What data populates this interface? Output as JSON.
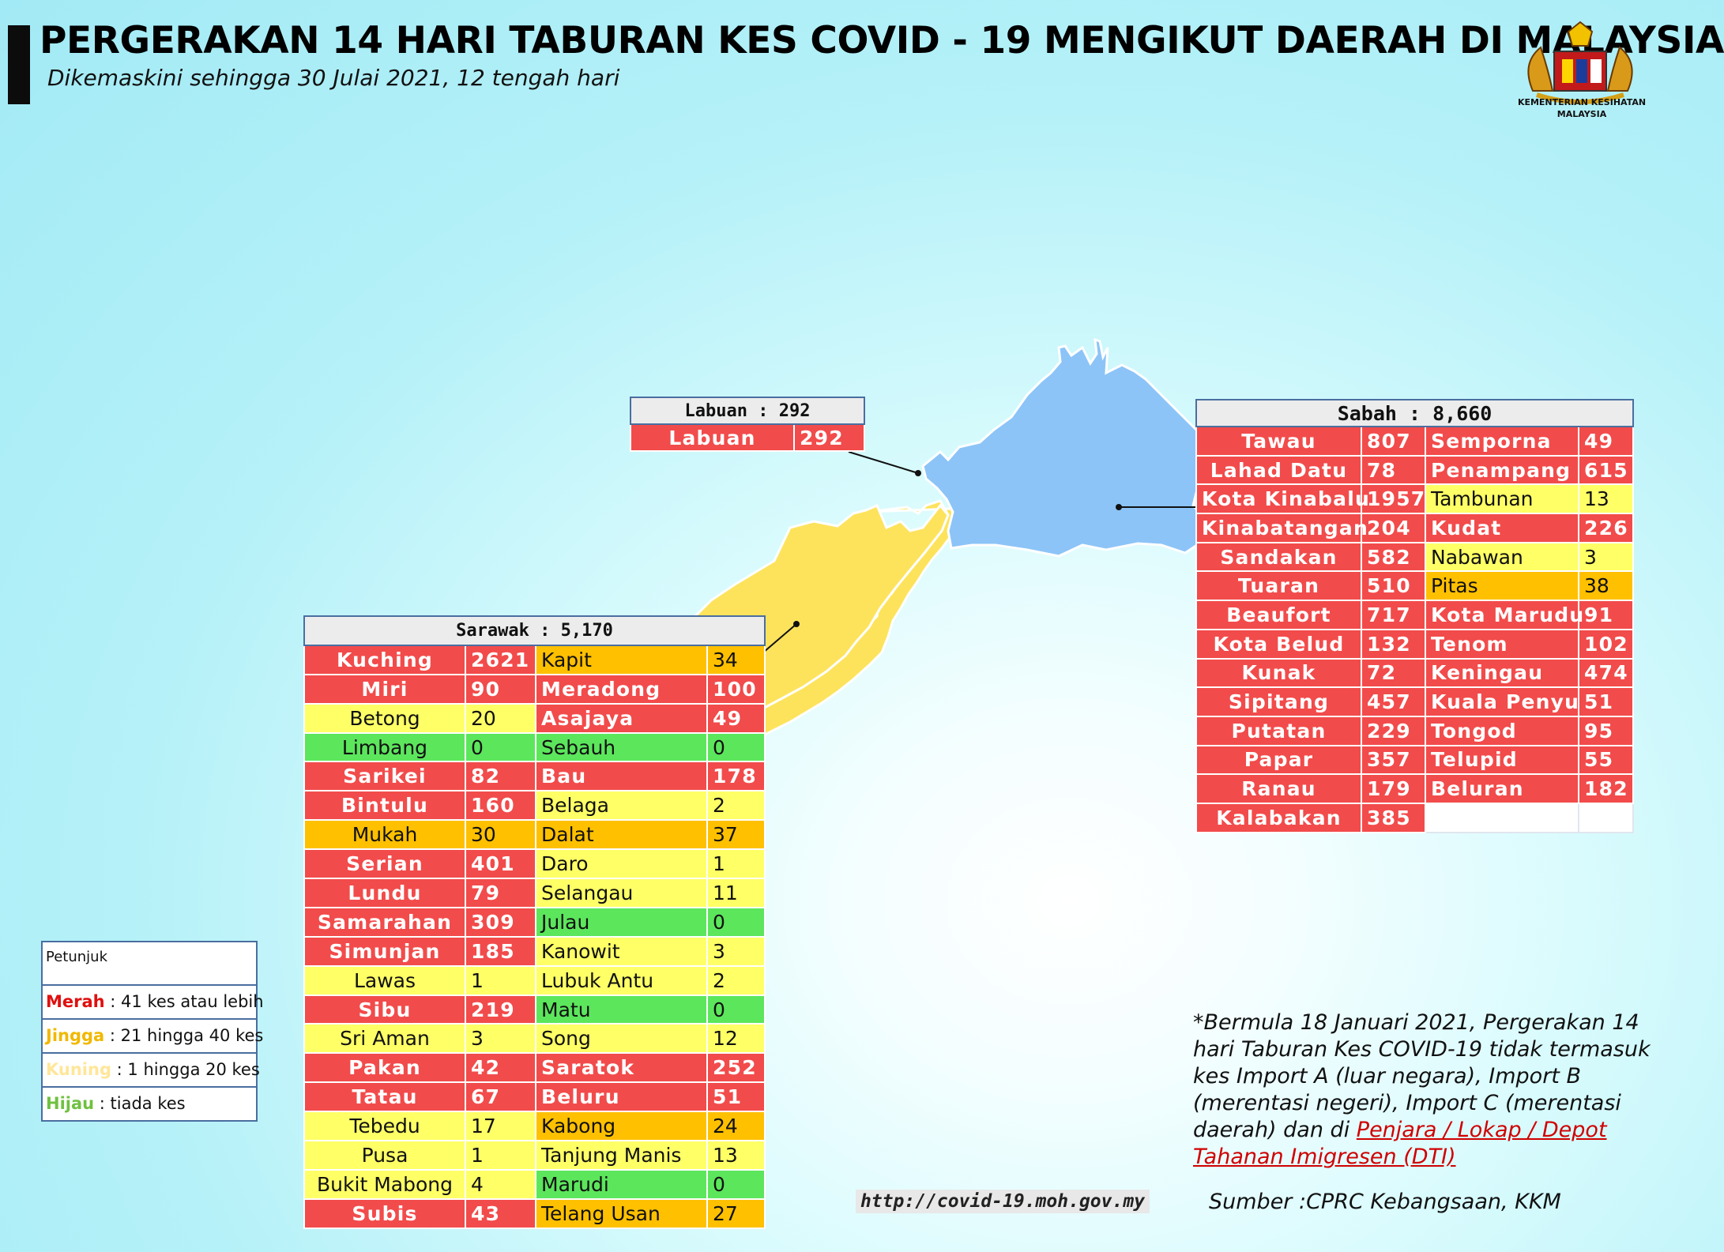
{
  "header": {
    "title": "PERGERAKAN 14 HARI TABURAN KES COVID - 19 MENGIKUT DAERAH DI MALAYSIA",
    "subtitle": "Dikemaskini sehingga 30 Julai 2021, 12 tengah hari",
    "logo_text_line1": "KEMENTERIAN KESIHATAN",
    "logo_text_line2": "MALAYSIA"
  },
  "colors": {
    "merah": "#f24b4b",
    "jingga": "#ffc000",
    "kuning": "#ffff66",
    "hijau": "#5ce65c",
    "sabah_map": "#8cc4f8",
    "sarawak_map": "#fde35c",
    "table_border": "#4a6ea0"
  },
  "labuan": {
    "header": "Labuan : 292",
    "rows": [
      {
        "name": "Labuan",
        "value": "292",
        "level": "red"
      }
    ]
  },
  "sabah": {
    "header": "Sabah : 8,660",
    "rows": [
      [
        {
          "name": "Tawau",
          "value": "807",
          "level": "red"
        },
        {
          "name": "Semporna",
          "value": "49",
          "level": "red"
        }
      ],
      [
        {
          "name": "Lahad Datu",
          "value": "78",
          "level": "red"
        },
        {
          "name": "Penampang",
          "value": "615",
          "level": "red"
        }
      ],
      [
        {
          "name": "Kota Kinabalu",
          "value": "1957",
          "level": "red"
        },
        {
          "name": "Tambunan",
          "value": "13",
          "level": "yel"
        }
      ],
      [
        {
          "name": "Kinabatangan",
          "value": "204",
          "level": "red"
        },
        {
          "name": "Kudat",
          "value": "226",
          "level": "red"
        }
      ],
      [
        {
          "name": "Sandakan",
          "value": "582",
          "level": "red"
        },
        {
          "name": "Nabawan",
          "value": "3",
          "level": "yel"
        }
      ],
      [
        {
          "name": "Tuaran",
          "value": "510",
          "level": "red"
        },
        {
          "name": "Pitas",
          "value": "38",
          "level": "org"
        }
      ],
      [
        {
          "name": "Beaufort",
          "value": "717",
          "level": "red"
        },
        {
          "name": "Kota Marudu",
          "value": "91",
          "level": "red"
        }
      ],
      [
        {
          "name": "Kota Belud",
          "value": "132",
          "level": "red"
        },
        {
          "name": "Tenom",
          "value": "102",
          "level": "red"
        }
      ],
      [
        {
          "name": "Kunak",
          "value": "72",
          "level": "red"
        },
        {
          "name": "Keningau",
          "value": "474",
          "level": "red"
        }
      ],
      [
        {
          "name": "Sipitang",
          "value": "457",
          "level": "red"
        },
        {
          "name": "Kuala Penyu",
          "value": "51",
          "level": "red"
        }
      ],
      [
        {
          "name": "Putatan",
          "value": "229",
          "level": "red"
        },
        {
          "name": "Tongod",
          "value": "95",
          "level": "red"
        }
      ],
      [
        {
          "name": "Papar",
          "value": "357",
          "level": "red"
        },
        {
          "name": "Telupid",
          "value": "55",
          "level": "red"
        }
      ],
      [
        {
          "name": "Ranau",
          "value": "179",
          "level": "red"
        },
        {
          "name": "Beluran",
          "value": "182",
          "level": "red"
        }
      ],
      [
        {
          "name": "Kalabakan",
          "value": "385",
          "level": "red"
        },
        null
      ]
    ]
  },
  "sarawak": {
    "header": "Sarawak : 5,170",
    "rows": [
      [
        {
          "name": "Kuching",
          "value": "2621",
          "level": "red"
        },
        {
          "name": "Kapit",
          "value": "34",
          "level": "org"
        }
      ],
      [
        {
          "name": "Miri",
          "value": "90",
          "level": "red"
        },
        {
          "name": "Meradong",
          "value": "100",
          "level": "red"
        }
      ],
      [
        {
          "name": "Betong",
          "value": "20",
          "level": "yel"
        },
        {
          "name": "Asajaya",
          "value": "49",
          "level": "red"
        }
      ],
      [
        {
          "name": "Limbang",
          "value": "0",
          "level": "grn"
        },
        {
          "name": "Sebauh",
          "value": "0",
          "level": "grn"
        }
      ],
      [
        {
          "name": "Sarikei",
          "value": "82",
          "level": "red"
        },
        {
          "name": "Bau",
          "value": "178",
          "level": "red"
        }
      ],
      [
        {
          "name": "Bintulu",
          "value": "160",
          "level": "red"
        },
        {
          "name": "Belaga",
          "value": "2",
          "level": "yel"
        }
      ],
      [
        {
          "name": "Mukah",
          "value": "30",
          "level": "org"
        },
        {
          "name": "Dalat",
          "value": "37",
          "level": "org"
        }
      ],
      [
        {
          "name": "Serian",
          "value": "401",
          "level": "red"
        },
        {
          "name": "Daro",
          "value": "1",
          "level": "yel"
        }
      ],
      [
        {
          "name": "Lundu",
          "value": "79",
          "level": "red"
        },
        {
          "name": "Selangau",
          "value": "11",
          "level": "yel"
        }
      ],
      [
        {
          "name": "Samarahan",
          "value": "309",
          "level": "red"
        },
        {
          "name": "Julau",
          "value": "0",
          "level": "grn"
        }
      ],
      [
        {
          "name": "Simunjan",
          "value": "185",
          "level": "red"
        },
        {
          "name": "Kanowit",
          "value": "3",
          "level": "yel"
        }
      ],
      [
        {
          "name": "Lawas",
          "value": "1",
          "level": "yel"
        },
        {
          "name": "Lubuk Antu",
          "value": "2",
          "level": "yel"
        }
      ],
      [
        {
          "name": "Sibu",
          "value": "219",
          "level": "red"
        },
        {
          "name": "Matu",
          "value": "0",
          "level": "grn"
        }
      ],
      [
        {
          "name": "Sri Aman",
          "value": "3",
          "level": "yel"
        },
        {
          "name": "Song",
          "value": "12",
          "level": "yel"
        }
      ],
      [
        {
          "name": "Pakan",
          "value": "42",
          "level": "red"
        },
        {
          "name": "Saratok",
          "value": "252",
          "level": "red"
        }
      ],
      [
        {
          "name": "Tatau",
          "value": "67",
          "level": "red"
        },
        {
          "name": "Beluru",
          "value": "51",
          "level": "red"
        }
      ],
      [
        {
          "name": "Tebedu",
          "value": "17",
          "level": "yel"
        },
        {
          "name": "Kabong",
          "value": "24",
          "level": "org"
        }
      ],
      [
        {
          "name": "Pusa",
          "value": "1",
          "level": "yel"
        },
        {
          "name": "Tanjung Manis",
          "value": "13",
          "level": "yel"
        }
      ],
      [
        {
          "name": "Bukit Mabong",
          "value": "4",
          "level": "yel"
        },
        {
          "name": "Marudi",
          "value": "0",
          "level": "grn"
        }
      ],
      [
        {
          "name": "Subis",
          "value": "43",
          "level": "red"
        },
        {
          "name": "Telang Usan",
          "value": "27",
          "level": "org"
        }
      ]
    ]
  },
  "legend": {
    "title": "Petunjuk",
    "items": [
      {
        "label": "Merah",
        "text": " : 41 kes atau lebih",
        "cls": "lg-red"
      },
      {
        "label": "Jingga",
        "text": " : 21 hingga 40 kes",
        "cls": "lg-org"
      },
      {
        "label": "Kuning",
        "text": " : 1 hingga 20 kes",
        "cls": "lg-yel"
      },
      {
        "label": "Hijau",
        "text": " : tiada kes",
        "cls": "lg-grn"
      }
    ]
  },
  "note": {
    "text": "*Bermula 18 Januari 2021, Pergerakan 14 hari Taburan Kes COVID-19 tidak termasuk kes Import A (luar negara), Import B (merentasi negeri), Import C (merentasi daerah) dan di ",
    "link": "Penjara / Lokap / Depot Tahanan Imigresen (DTI)"
  },
  "footer": {
    "url": "http://covid-19.moh.gov.my",
    "source": "Sumber :CPRC Kebangsaan,  KKM"
  }
}
